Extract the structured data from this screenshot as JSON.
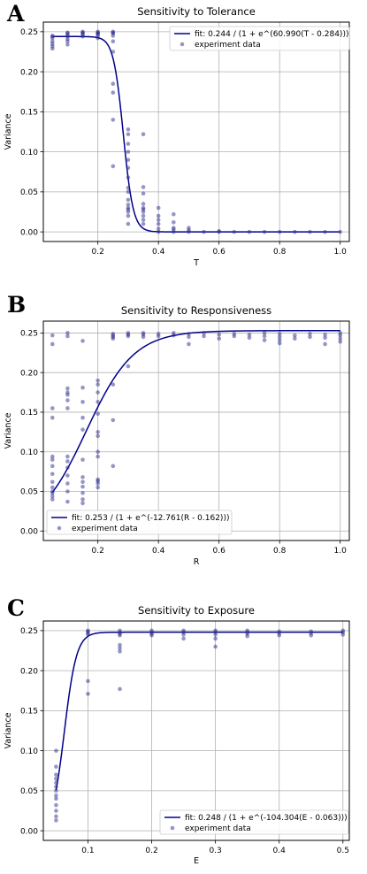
{
  "colors": {
    "fit": "#00008b",
    "points": "#2e2e8b",
    "grid": "#b0b0b0"
  },
  "chart_data": [
    {
      "panel": "A",
      "type": "scatter",
      "title": "Sensitivity to Tolerance",
      "xlabel": "T",
      "ylabel": "Variance",
      "xlim": [
        0.02,
        1.03
      ],
      "ylim": [
        -0.012,
        0.262
      ],
      "xticks": [
        0.2,
        0.4,
        0.6,
        0.8,
        1.0
      ],
      "xtick_labels": [
        "0.2",
        "0.4",
        "0.6",
        "0.8",
        "1.0"
      ],
      "yticks": [
        0.0,
        0.05,
        0.1,
        0.15,
        0.2,
        0.25
      ],
      "ytick_labels": [
        "0.00",
        "0.05",
        "0.10",
        "0.15",
        "0.20",
        "0.25"
      ],
      "grid": true,
      "legend_position": "top-right",
      "fit": {
        "label": "fit: 0.244 / (1 + e^(60.990(T - 0.284)))",
        "L": 0.244,
        "k": -60.99,
        "x0": 0.284,
        "x_range": [
          0.05,
          1.0
        ]
      },
      "scatter_label": "experiment data",
      "points": [
        [
          0.05,
          0.229
        ],
        [
          0.05,
          0.232
        ],
        [
          0.05,
          0.235
        ],
        [
          0.05,
          0.238
        ],
        [
          0.05,
          0.242
        ],
        [
          0.05,
          0.244
        ],
        [
          0.05,
          0.245
        ],
        [
          0.1,
          0.234
        ],
        [
          0.1,
          0.238
        ],
        [
          0.1,
          0.241
        ],
        [
          0.1,
          0.244
        ],
        [
          0.1,
          0.246
        ],
        [
          0.1,
          0.248
        ],
        [
          0.1,
          0.249
        ],
        [
          0.15,
          0.244
        ],
        [
          0.15,
          0.246
        ],
        [
          0.15,
          0.248
        ],
        [
          0.15,
          0.249
        ],
        [
          0.15,
          0.25
        ],
        [
          0.2,
          0.242
        ],
        [
          0.2,
          0.245
        ],
        [
          0.2,
          0.247
        ],
        [
          0.2,
          0.248
        ],
        [
          0.2,
          0.249
        ],
        [
          0.2,
          0.25
        ],
        [
          0.25,
          0.082
        ],
        [
          0.25,
          0.14
        ],
        [
          0.25,
          0.174
        ],
        [
          0.25,
          0.185
        ],
        [
          0.25,
          0.225
        ],
        [
          0.25,
          0.238
        ],
        [
          0.25,
          0.245
        ],
        [
          0.25,
          0.248
        ],
        [
          0.25,
          0.249
        ],
        [
          0.25,
          0.25
        ],
        [
          0.3,
          0.01
        ],
        [
          0.3,
          0.02
        ],
        [
          0.3,
          0.025
        ],
        [
          0.3,
          0.028
        ],
        [
          0.3,
          0.03
        ],
        [
          0.3,
          0.034
        ],
        [
          0.3,
          0.04
        ],
        [
          0.3,
          0.05
        ],
        [
          0.3,
          0.055
        ],
        [
          0.3,
          0.068
        ],
        [
          0.3,
          0.08
        ],
        [
          0.3,
          0.09
        ],
        [
          0.3,
          0.1
        ],
        [
          0.3,
          0.11
        ],
        [
          0.3,
          0.122
        ],
        [
          0.3,
          0.128
        ],
        [
          0.35,
          0.01
        ],
        [
          0.35,
          0.015
        ],
        [
          0.35,
          0.02
        ],
        [
          0.35,
          0.025
        ],
        [
          0.35,
          0.028
        ],
        [
          0.35,
          0.03
        ],
        [
          0.35,
          0.035
        ],
        [
          0.35,
          0.048
        ],
        [
          0.35,
          0.056
        ],
        [
          0.35,
          0.122
        ],
        [
          0.4,
          0.0
        ],
        [
          0.4,
          0.004
        ],
        [
          0.4,
          0.01
        ],
        [
          0.4,
          0.015
        ],
        [
          0.4,
          0.02
        ],
        [
          0.4,
          0.03
        ],
        [
          0.45,
          0.0
        ],
        [
          0.45,
          0.003
        ],
        [
          0.45,
          0.005
        ],
        [
          0.45,
          0.012
        ],
        [
          0.45,
          0.022
        ],
        [
          0.5,
          0.0
        ],
        [
          0.5,
          0.002
        ],
        [
          0.5,
          0.005
        ],
        [
          0.55,
          0.0
        ],
        [
          0.6,
          0.0
        ],
        [
          0.6,
          0.001
        ],
        [
          0.65,
          0.0
        ],
        [
          0.7,
          0.0
        ],
        [
          0.75,
          0.0
        ],
        [
          0.8,
          0.0
        ],
        [
          0.85,
          0.0
        ],
        [
          0.9,
          0.0
        ],
        [
          0.95,
          0.0
        ],
        [
          1.0,
          0.0
        ]
      ]
    },
    {
      "panel": "B",
      "type": "scatter",
      "title": "Sensitivity to Responsiveness",
      "xlabel": "R",
      "ylabel": "Variance",
      "xlim": [
        0.02,
        1.03
      ],
      "ylim": [
        -0.012,
        0.265
      ],
      "xticks": [
        0.2,
        0.4,
        0.6,
        0.8,
        1.0
      ],
      "xtick_labels": [
        "0.2",
        "0.4",
        "0.6",
        "0.8",
        "1.0"
      ],
      "yticks": [
        0.0,
        0.05,
        0.1,
        0.15,
        0.2,
        0.25
      ],
      "ytick_labels": [
        "0.00",
        "0.05",
        "0.10",
        "0.15",
        "0.20",
        "0.25"
      ],
      "grid": true,
      "legend_position": "bottom-left",
      "fit": {
        "label": "fit: 0.253 / (1 + e^(-12.761(R - 0.162)))",
        "L": 0.253,
        "k": 12.761,
        "x0": 0.162,
        "x_range": [
          0.05,
          1.0
        ]
      },
      "scatter_label": "experiment data",
      "points": [
        [
          0.05,
          0.04
        ],
        [
          0.05,
          0.044
        ],
        [
          0.05,
          0.048
        ],
        [
          0.05,
          0.05
        ],
        [
          0.05,
          0.055
        ],
        [
          0.05,
          0.062
        ],
        [
          0.05,
          0.072
        ],
        [
          0.05,
          0.082
        ],
        [
          0.05,
          0.09
        ],
        [
          0.05,
          0.094
        ],
        [
          0.05,
          0.143
        ],
        [
          0.05,
          0.155
        ],
        [
          0.05,
          0.236
        ],
        [
          0.05,
          0.247
        ],
        [
          0.1,
          0.037
        ],
        [
          0.1,
          0.05
        ],
        [
          0.1,
          0.06
        ],
        [
          0.1,
          0.07
        ],
        [
          0.1,
          0.08
        ],
        [
          0.1,
          0.088
        ],
        [
          0.1,
          0.094
        ],
        [
          0.1,
          0.155
        ],
        [
          0.1,
          0.165
        ],
        [
          0.1,
          0.172
        ],
        [
          0.1,
          0.175
        ],
        [
          0.1,
          0.18
        ],
        [
          0.1,
          0.246
        ],
        [
          0.1,
          0.25
        ],
        [
          0.15,
          0.035
        ],
        [
          0.15,
          0.04
        ],
        [
          0.15,
          0.048
        ],
        [
          0.15,
          0.056
        ],
        [
          0.15,
          0.062
        ],
        [
          0.15,
          0.068
        ],
        [
          0.15,
          0.09
        ],
        [
          0.15,
          0.128
        ],
        [
          0.15,
          0.143
        ],
        [
          0.15,
          0.163
        ],
        [
          0.15,
          0.181
        ],
        [
          0.15,
          0.24
        ],
        [
          0.2,
          0.055
        ],
        [
          0.2,
          0.06
        ],
        [
          0.2,
          0.063
        ],
        [
          0.2,
          0.065
        ],
        [
          0.2,
          0.094
        ],
        [
          0.2,
          0.1
        ],
        [
          0.2,
          0.12
        ],
        [
          0.2,
          0.125
        ],
        [
          0.2,
          0.148
        ],
        [
          0.2,
          0.163
        ],
        [
          0.2,
          0.175
        ],
        [
          0.2,
          0.185
        ],
        [
          0.2,
          0.19
        ],
        [
          0.25,
          0.082
        ],
        [
          0.25,
          0.14
        ],
        [
          0.25,
          0.185
        ],
        [
          0.25,
          0.243
        ],
        [
          0.25,
          0.245
        ],
        [
          0.25,
          0.247
        ],
        [
          0.25,
          0.249
        ],
        [
          0.3,
          0.208
        ],
        [
          0.3,
          0.246
        ],
        [
          0.3,
          0.248
        ],
        [
          0.3,
          0.25
        ],
        [
          0.35,
          0.245
        ],
        [
          0.35,
          0.248
        ],
        [
          0.35,
          0.25
        ],
        [
          0.4,
          0.246
        ],
        [
          0.4,
          0.249
        ],
        [
          0.45,
          0.247
        ],
        [
          0.45,
          0.25
        ],
        [
          0.5,
          0.236
        ],
        [
          0.5,
          0.245
        ],
        [
          0.5,
          0.249
        ],
        [
          0.55,
          0.246
        ],
        [
          0.55,
          0.25
        ],
        [
          0.6,
          0.243
        ],
        [
          0.6,
          0.248
        ],
        [
          0.65,
          0.246
        ],
        [
          0.65,
          0.249
        ],
        [
          0.7,
          0.244
        ],
        [
          0.7,
          0.248
        ],
        [
          0.75,
          0.241
        ],
        [
          0.75,
          0.246
        ],
        [
          0.75,
          0.25
        ],
        [
          0.8,
          0.237
        ],
        [
          0.8,
          0.241
        ],
        [
          0.8,
          0.245
        ],
        [
          0.8,
          0.249
        ],
        [
          0.85,
          0.243
        ],
        [
          0.85,
          0.247
        ],
        [
          0.9,
          0.245
        ],
        [
          0.9,
          0.249
        ],
        [
          0.95,
          0.236
        ],
        [
          0.95,
          0.244
        ],
        [
          0.95,
          0.248
        ],
        [
          1.0,
          0.239
        ],
        [
          1.0,
          0.243
        ],
        [
          1.0,
          0.247
        ],
        [
          1.0,
          0.25
        ]
      ]
    },
    {
      "panel": "C",
      "type": "scatter",
      "title": "Sensitivity to Exposure",
      "xlabel": "E",
      "ylabel": "Variance",
      "xlim": [
        0.03,
        0.51
      ],
      "ylim": [
        -0.012,
        0.262
      ],
      "xticks": [
        0.1,
        0.2,
        0.3,
        0.4,
        0.5
      ],
      "xtick_labels": [
        "0.1",
        "0.2",
        "0.3",
        "0.4",
        "0.5"
      ],
      "yticks": [
        0.0,
        0.05,
        0.1,
        0.15,
        0.2,
        0.25
      ],
      "ytick_labels": [
        "0.00",
        "0.05",
        "0.10",
        "0.15",
        "0.20",
        "0.25"
      ],
      "grid": true,
      "legend_position": "bottom-right",
      "fit": {
        "label": "fit: 0.248 / (1 + e^(-104.304(E - 0.063)))",
        "L": 0.248,
        "k": 104.304,
        "x0": 0.063,
        "x_range": [
          0.05,
          0.5
        ]
      },
      "scatter_label": "experiment data",
      "points": [
        [
          0.05,
          0.013
        ],
        [
          0.05,
          0.018
        ],
        [
          0.05,
          0.025
        ],
        [
          0.05,
          0.032
        ],
        [
          0.05,
          0.04
        ],
        [
          0.05,
          0.044
        ],
        [
          0.05,
          0.05
        ],
        [
          0.05,
          0.055
        ],
        [
          0.05,
          0.06
        ],
        [
          0.05,
          0.065
        ],
        [
          0.05,
          0.07
        ],
        [
          0.05,
          0.08
        ],
        [
          0.05,
          0.1
        ],
        [
          0.1,
          0.171
        ],
        [
          0.1,
          0.187
        ],
        [
          0.1,
          0.245
        ],
        [
          0.1,
          0.247
        ],
        [
          0.1,
          0.249
        ],
        [
          0.1,
          0.25
        ],
        [
          0.15,
          0.177
        ],
        [
          0.15,
          0.224
        ],
        [
          0.15,
          0.228
        ],
        [
          0.15,
          0.232
        ],
        [
          0.15,
          0.244
        ],
        [
          0.15,
          0.246
        ],
        [
          0.15,
          0.248
        ],
        [
          0.15,
          0.25
        ],
        [
          0.2,
          0.244
        ],
        [
          0.2,
          0.246
        ],
        [
          0.2,
          0.248
        ],
        [
          0.2,
          0.25
        ],
        [
          0.25,
          0.24
        ],
        [
          0.25,
          0.245
        ],
        [
          0.25,
          0.248
        ],
        [
          0.25,
          0.25
        ],
        [
          0.3,
          0.23
        ],
        [
          0.3,
          0.24
        ],
        [
          0.3,
          0.245
        ],
        [
          0.3,
          0.248
        ],
        [
          0.3,
          0.25
        ],
        [
          0.35,
          0.243
        ],
        [
          0.35,
          0.246
        ],
        [
          0.35,
          0.248
        ],
        [
          0.35,
          0.25
        ],
        [
          0.4,
          0.244
        ],
        [
          0.4,
          0.247
        ],
        [
          0.4,
          0.249
        ],
        [
          0.45,
          0.244
        ],
        [
          0.45,
          0.247
        ],
        [
          0.45,
          0.249
        ],
        [
          0.5,
          0.245
        ],
        [
          0.5,
          0.248
        ],
        [
          0.5,
          0.25
        ]
      ]
    }
  ]
}
